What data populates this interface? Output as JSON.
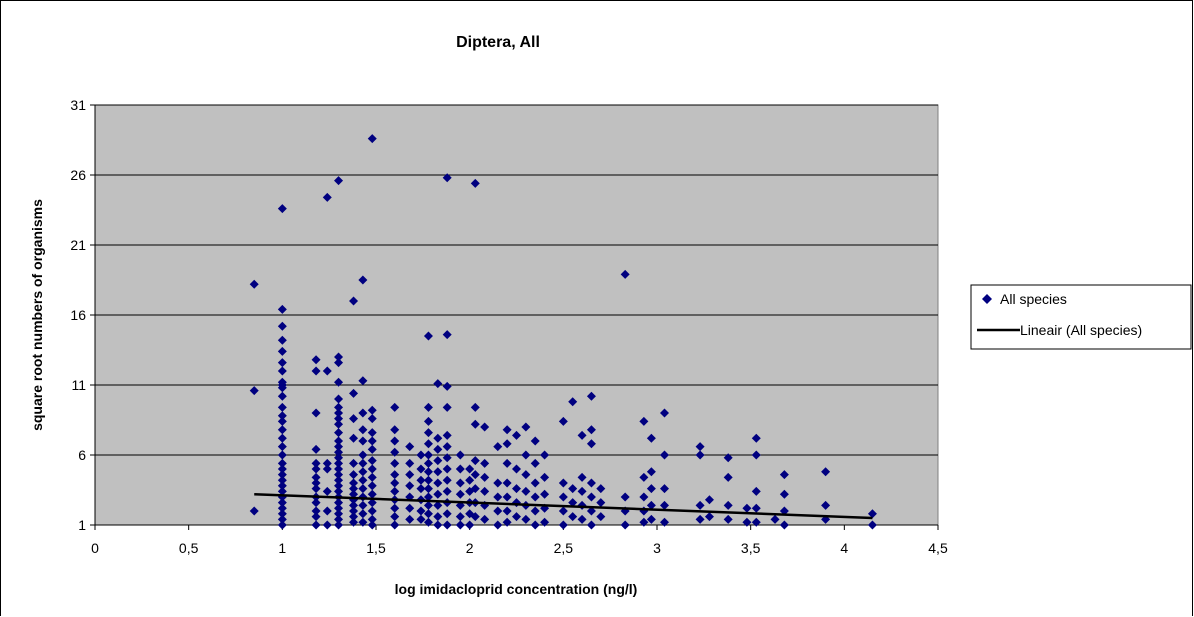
{
  "chart_data": {
    "type": "scatter",
    "title": "Diptera, All",
    "xlabel": "log imidacloprid concentration (ng/l)",
    "ylabel": "square root numbers of organisms",
    "xlim": [
      0,
      4.5
    ],
    "ylim": [
      1,
      31
    ],
    "x_ticks": [
      "0",
      "0,5",
      "1",
      "1,5",
      "2",
      "2,5",
      "3",
      "3,5",
      "4",
      "4,5"
    ],
    "y_ticks": [
      "1",
      "6",
      "11",
      "16",
      "21",
      "26",
      "31"
    ],
    "grid": "horizontal",
    "plot_background": "#c0c0c0",
    "legend_position": "right",
    "series": [
      {
        "name": "All species",
        "marker": "diamond",
        "color": "#000080",
        "points": [
          [
            0.85,
            18.2
          ],
          [
            0.85,
            10.6
          ],
          [
            0.85,
            2.0
          ],
          [
            1.0,
            23.6
          ],
          [
            1.0,
            16.4
          ],
          [
            1.0,
            15.2
          ],
          [
            1.0,
            14.2
          ],
          [
            1.0,
            13.4
          ],
          [
            1.0,
            12.6
          ],
          [
            1.0,
            12.0
          ],
          [
            1.0,
            11.2
          ],
          [
            1.0,
            11.0
          ],
          [
            1.0,
            10.8
          ],
          [
            1.0,
            10.2
          ],
          [
            1.0,
            9.4
          ],
          [
            1.0,
            8.8
          ],
          [
            1.0,
            8.4
          ],
          [
            1.0,
            7.8
          ],
          [
            1.0,
            7.2
          ],
          [
            1.0,
            6.6
          ],
          [
            1.0,
            6.0
          ],
          [
            1.0,
            5.4
          ],
          [
            1.0,
            5.0
          ],
          [
            1.0,
            4.6
          ],
          [
            1.0,
            4.2
          ],
          [
            1.0,
            3.8
          ],
          [
            1.0,
            3.4
          ],
          [
            1.0,
            3.0
          ],
          [
            1.0,
            2.6
          ],
          [
            1.0,
            2.2
          ],
          [
            1.0,
            1.8
          ],
          [
            1.0,
            1.4
          ],
          [
            1.0,
            1.0
          ],
          [
            1.18,
            12.8
          ],
          [
            1.18,
            12.0
          ],
          [
            1.18,
            9.0
          ],
          [
            1.18,
            6.4
          ],
          [
            1.18,
            5.4
          ],
          [
            1.18,
            5.0
          ],
          [
            1.18,
            4.4
          ],
          [
            1.18,
            4.0
          ],
          [
            1.18,
            3.6
          ],
          [
            1.18,
            3.0
          ],
          [
            1.18,
            2.6
          ],
          [
            1.18,
            2.0
          ],
          [
            1.18,
            1.6
          ],
          [
            1.18,
            1.0
          ],
          [
            1.24,
            24.4
          ],
          [
            1.24,
            12.0
          ],
          [
            1.24,
            5.4
          ],
          [
            1.24,
            5.0
          ],
          [
            1.24,
            3.4
          ],
          [
            1.24,
            2.0
          ],
          [
            1.24,
            1.0
          ],
          [
            1.3,
            25.6
          ],
          [
            1.3,
            13.0
          ],
          [
            1.3,
            12.6
          ],
          [
            1.3,
            11.2
          ],
          [
            1.3,
            10.0
          ],
          [
            1.3,
            9.4
          ],
          [
            1.3,
            9.0
          ],
          [
            1.3,
            8.6
          ],
          [
            1.3,
            8.2
          ],
          [
            1.3,
            7.6
          ],
          [
            1.3,
            7.0
          ],
          [
            1.3,
            6.6
          ],
          [
            1.3,
            6.2
          ],
          [
            1.3,
            5.8
          ],
          [
            1.3,
            5.4
          ],
          [
            1.3,
            5.0
          ],
          [
            1.3,
            4.6
          ],
          [
            1.3,
            4.2
          ],
          [
            1.3,
            3.8
          ],
          [
            1.3,
            3.4
          ],
          [
            1.3,
            3.0
          ],
          [
            1.3,
            2.6
          ],
          [
            1.3,
            2.2
          ],
          [
            1.3,
            1.8
          ],
          [
            1.3,
            1.4
          ],
          [
            1.3,
            1.0
          ],
          [
            1.38,
            17.0
          ],
          [
            1.38,
            10.4
          ],
          [
            1.38,
            8.6
          ],
          [
            1.38,
            7.2
          ],
          [
            1.38,
            5.4
          ],
          [
            1.38,
            4.6
          ],
          [
            1.38,
            4.0
          ],
          [
            1.38,
            3.6
          ],
          [
            1.38,
            3.2
          ],
          [
            1.38,
            2.8
          ],
          [
            1.38,
            2.4
          ],
          [
            1.38,
            2.0
          ],
          [
            1.38,
            1.6
          ],
          [
            1.38,
            1.2
          ],
          [
            1.43,
            18.5
          ],
          [
            1.43,
            11.3
          ],
          [
            1.43,
            9.0
          ],
          [
            1.43,
            7.8
          ],
          [
            1.43,
            7.0
          ],
          [
            1.43,
            6.0
          ],
          [
            1.43,
            5.4
          ],
          [
            1.43,
            4.8
          ],
          [
            1.43,
            4.2
          ],
          [
            1.43,
            3.6
          ],
          [
            1.43,
            3.0
          ],
          [
            1.43,
            2.4
          ],
          [
            1.43,
            1.8
          ],
          [
            1.43,
            1.2
          ],
          [
            1.48,
            28.6
          ],
          [
            1.48,
            9.2
          ],
          [
            1.48,
            8.6
          ],
          [
            1.48,
            7.6
          ],
          [
            1.48,
            7.0
          ],
          [
            1.48,
            6.4
          ],
          [
            1.48,
            5.6
          ],
          [
            1.48,
            5.0
          ],
          [
            1.48,
            4.4
          ],
          [
            1.48,
            3.8
          ],
          [
            1.48,
            3.2
          ],
          [
            1.48,
            2.6
          ],
          [
            1.48,
            2.0
          ],
          [
            1.48,
            1.4
          ],
          [
            1.48,
            1.0
          ],
          [
            1.6,
            9.4
          ],
          [
            1.6,
            7.8
          ],
          [
            1.6,
            7.0
          ],
          [
            1.6,
            6.2
          ],
          [
            1.6,
            5.4
          ],
          [
            1.6,
            4.6
          ],
          [
            1.6,
            4.0
          ],
          [
            1.6,
            3.4
          ],
          [
            1.6,
            2.8
          ],
          [
            1.6,
            2.2
          ],
          [
            1.6,
            1.6
          ],
          [
            1.6,
            1.0
          ],
          [
            1.68,
            6.6
          ],
          [
            1.68,
            5.4
          ],
          [
            1.68,
            4.6
          ],
          [
            1.68,
            3.8
          ],
          [
            1.68,
            3.0
          ],
          [
            1.68,
            2.2
          ],
          [
            1.68,
            1.4
          ],
          [
            1.74,
            6.0
          ],
          [
            1.74,
            5.0
          ],
          [
            1.74,
            4.2
          ],
          [
            1.74,
            3.6
          ],
          [
            1.74,
            2.8
          ],
          [
            1.74,
            2.0
          ],
          [
            1.74,
            1.4
          ],
          [
            1.78,
            14.5
          ],
          [
            1.78,
            9.4
          ],
          [
            1.78,
            8.4
          ],
          [
            1.78,
            7.6
          ],
          [
            1.78,
            6.8
          ],
          [
            1.78,
            6.0
          ],
          [
            1.78,
            5.4
          ],
          [
            1.78,
            4.8
          ],
          [
            1.78,
            4.2
          ],
          [
            1.78,
            3.6
          ],
          [
            1.78,
            3.0
          ],
          [
            1.78,
            2.4
          ],
          [
            1.78,
            1.8
          ],
          [
            1.78,
            1.2
          ],
          [
            1.83,
            11.1
          ],
          [
            1.83,
            7.2
          ],
          [
            1.83,
            6.4
          ],
          [
            1.83,
            5.6
          ],
          [
            1.83,
            4.8
          ],
          [
            1.83,
            4.0
          ],
          [
            1.83,
            3.2
          ],
          [
            1.83,
            2.4
          ],
          [
            1.83,
            1.6
          ],
          [
            1.83,
            1.0
          ],
          [
            1.88,
            25.8
          ],
          [
            1.88,
            14.6
          ],
          [
            1.88,
            10.9
          ],
          [
            1.88,
            9.4
          ],
          [
            1.88,
            7.4
          ],
          [
            1.88,
            6.6
          ],
          [
            1.88,
            5.8
          ],
          [
            1.88,
            5.0
          ],
          [
            1.88,
            4.2
          ],
          [
            1.88,
            3.4
          ],
          [
            1.88,
            2.6
          ],
          [
            1.88,
            1.8
          ],
          [
            1.88,
            1.0
          ],
          [
            1.95,
            6.0
          ],
          [
            1.95,
            5.0
          ],
          [
            1.95,
            4.0
          ],
          [
            1.95,
            3.2
          ],
          [
            1.95,
            2.4
          ],
          [
            1.95,
            1.6
          ],
          [
            1.95,
            1.0
          ],
          [
            2.0,
            5.0
          ],
          [
            2.0,
            4.2
          ],
          [
            2.0,
            3.4
          ],
          [
            2.0,
            2.6
          ],
          [
            2.0,
            1.8
          ],
          [
            2.0,
            1.0
          ],
          [
            2.03,
            25.4
          ],
          [
            2.03,
            9.4
          ],
          [
            2.03,
            8.2
          ],
          [
            2.03,
            5.6
          ],
          [
            2.03,
            4.6
          ],
          [
            2.03,
            3.6
          ],
          [
            2.03,
            2.6
          ],
          [
            2.03,
            1.6
          ],
          [
            2.08,
            8.0
          ],
          [
            2.08,
            5.4
          ],
          [
            2.08,
            4.4
          ],
          [
            2.08,
            3.4
          ],
          [
            2.08,
            2.4
          ],
          [
            2.08,
            1.4
          ],
          [
            2.15,
            6.6
          ],
          [
            2.15,
            4.0
          ],
          [
            2.15,
            3.0
          ],
          [
            2.15,
            2.0
          ],
          [
            2.15,
            1.0
          ],
          [
            2.2,
            7.8
          ],
          [
            2.2,
            6.8
          ],
          [
            2.2,
            5.4
          ],
          [
            2.2,
            4.0
          ],
          [
            2.2,
            3.0
          ],
          [
            2.2,
            2.0
          ],
          [
            2.2,
            1.2
          ],
          [
            2.25,
            7.4
          ],
          [
            2.25,
            5.0
          ],
          [
            2.25,
            3.6
          ],
          [
            2.25,
            2.6
          ],
          [
            2.25,
            1.6
          ],
          [
            2.3,
            8.0
          ],
          [
            2.3,
            6.0
          ],
          [
            2.3,
            4.6
          ],
          [
            2.3,
            3.4
          ],
          [
            2.3,
            2.4
          ],
          [
            2.3,
            1.4
          ],
          [
            2.35,
            7.0
          ],
          [
            2.35,
            5.4
          ],
          [
            2.35,
            4.0
          ],
          [
            2.35,
            3.0
          ],
          [
            2.35,
            2.0
          ],
          [
            2.35,
            1.0
          ],
          [
            2.4,
            6.0
          ],
          [
            2.4,
            4.4
          ],
          [
            2.4,
            3.2
          ],
          [
            2.4,
            2.2
          ],
          [
            2.4,
            1.2
          ],
          [
            2.5,
            8.4
          ],
          [
            2.5,
            4.0
          ],
          [
            2.5,
            3.0
          ],
          [
            2.5,
            2.0
          ],
          [
            2.5,
            1.0
          ],
          [
            2.55,
            9.8
          ],
          [
            2.55,
            3.6
          ],
          [
            2.55,
            2.6
          ],
          [
            2.55,
            1.6
          ],
          [
            2.6,
            7.4
          ],
          [
            2.6,
            4.4
          ],
          [
            2.6,
            3.4
          ],
          [
            2.6,
            2.4
          ],
          [
            2.6,
            1.4
          ],
          [
            2.65,
            10.2
          ],
          [
            2.65,
            7.8
          ],
          [
            2.65,
            6.8
          ],
          [
            2.65,
            4.0
          ],
          [
            2.65,
            3.0
          ],
          [
            2.65,
            2.0
          ],
          [
            2.65,
            1.0
          ],
          [
            2.7,
            3.6
          ],
          [
            2.7,
            2.6
          ],
          [
            2.7,
            1.6
          ],
          [
            2.83,
            18.9
          ],
          [
            2.83,
            3.0
          ],
          [
            2.83,
            2.0
          ],
          [
            2.83,
            1.0
          ],
          [
            2.93,
            8.4
          ],
          [
            2.93,
            4.4
          ],
          [
            2.93,
            3.0
          ],
          [
            2.93,
            2.0
          ],
          [
            2.93,
            1.2
          ],
          [
            2.97,
            7.2
          ],
          [
            2.97,
            4.8
          ],
          [
            2.97,
            3.6
          ],
          [
            2.97,
            2.4
          ],
          [
            2.97,
            1.4
          ],
          [
            3.04,
            9.0
          ],
          [
            3.04,
            6.0
          ],
          [
            3.04,
            3.6
          ],
          [
            3.04,
            2.4
          ],
          [
            3.04,
            1.2
          ],
          [
            3.23,
            6.6
          ],
          [
            3.23,
            6.0
          ],
          [
            3.23,
            2.4
          ],
          [
            3.23,
            1.4
          ],
          [
            3.28,
            2.8
          ],
          [
            3.28,
            1.6
          ],
          [
            3.38,
            5.8
          ],
          [
            3.38,
            4.4
          ],
          [
            3.38,
            2.4
          ],
          [
            3.38,
            1.4
          ],
          [
            3.48,
            2.2
          ],
          [
            3.48,
            1.2
          ],
          [
            3.53,
            7.2
          ],
          [
            3.53,
            6.0
          ],
          [
            3.53,
            3.4
          ],
          [
            3.53,
            2.2
          ],
          [
            3.53,
            1.2
          ],
          [
            3.63,
            1.4
          ],
          [
            3.68,
            4.6
          ],
          [
            3.68,
            3.2
          ],
          [
            3.68,
            2.0
          ],
          [
            3.68,
            1.0
          ],
          [
            3.9,
            4.8
          ],
          [
            3.9,
            2.4
          ],
          [
            3.9,
            1.4
          ],
          [
            4.15,
            1.8
          ],
          [
            4.15,
            1.0
          ]
        ]
      },
      {
        "name": "Lineair (All species)",
        "kind": "trendline",
        "color": "#000000",
        "x": [
          0.85,
          4.15
        ],
        "y": [
          3.2,
          1.5
        ]
      }
    ]
  }
}
